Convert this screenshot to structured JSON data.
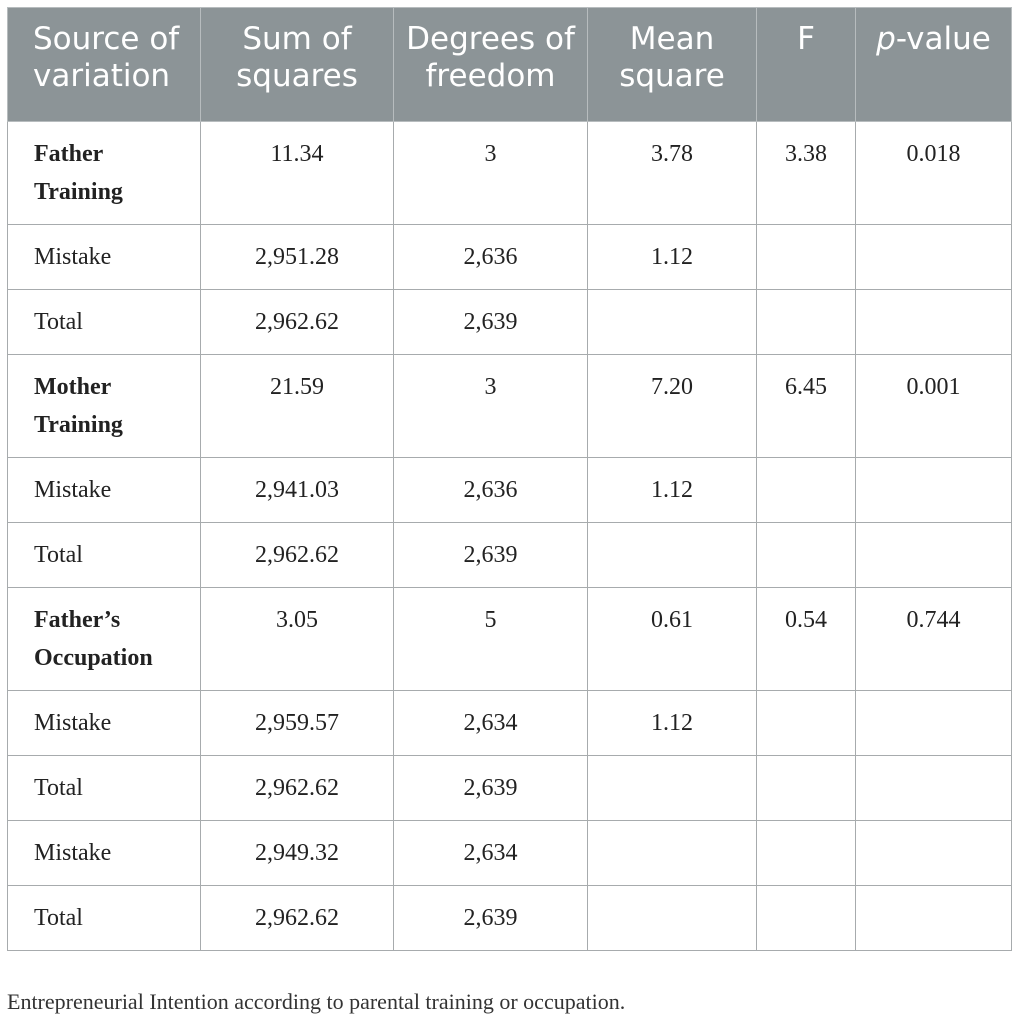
{
  "table": {
    "headers": {
      "source": "Source of variation",
      "sum_sq": "Sum of squares",
      "df": "Degrees of freedom",
      "mean_sq": "Mean square",
      "f": "F",
      "p_prefix": "p",
      "p_rest": "-value"
    },
    "rows": [
      {
        "label": "Father Training",
        "bold": true,
        "ss": "11.34",
        "df": "3",
        "ms": "3.78",
        "f": "3.38",
        "p": "0.018"
      },
      {
        "label": "Mistake",
        "bold": false,
        "ss": "2,951.28",
        "df": "2,636",
        "ms": "1.12",
        "f": "",
        "p": ""
      },
      {
        "label": "Total",
        "bold": false,
        "ss": "2,962.62",
        "df": "2,639",
        "ms": "",
        "f": "",
        "p": ""
      },
      {
        "label": "Mother Training",
        "bold": true,
        "ss": "21.59",
        "df": "3",
        "ms": "7.20",
        "f": "6.45",
        "p": "0.001"
      },
      {
        "label": "Mistake",
        "bold": false,
        "ss": "2,941.03",
        "df": "2,636",
        "ms": "1.12",
        "f": "",
        "p": ""
      },
      {
        "label": "Total",
        "bold": false,
        "ss": "2,962.62",
        "df": "2,639",
        "ms": "",
        "f": "",
        "p": ""
      },
      {
        "label": "Father’s Occupation",
        "bold": true,
        "ss": "3.05",
        "df": "5",
        "ms": "0.61",
        "f": "0.54",
        "p": "0.744"
      },
      {
        "label": "Mistake",
        "bold": false,
        "ss": "2,959.57",
        "df": "2,634",
        "ms": "1.12",
        "f": "",
        "p": ""
      },
      {
        "label": "Total",
        "bold": false,
        "ss": "2,962.62",
        "df": "2,639",
        "ms": "",
        "f": "",
        "p": ""
      },
      {
        "label": "Mistake",
        "bold": false,
        "ss": "2,949.32",
        "df": "2,634",
        "ms": "",
        "f": "",
        "p": ""
      },
      {
        "label": "Total",
        "bold": false,
        "ss": "2,962.62",
        "df": "2,639",
        "ms": "",
        "f": "",
        "p": ""
      }
    ]
  },
  "caption": "Entrepreneurial Intention according to parental training or occupation.",
  "colors": {
    "header_bg": "#8c9497",
    "header_text": "#ffffff",
    "border": "#a7abad"
  }
}
